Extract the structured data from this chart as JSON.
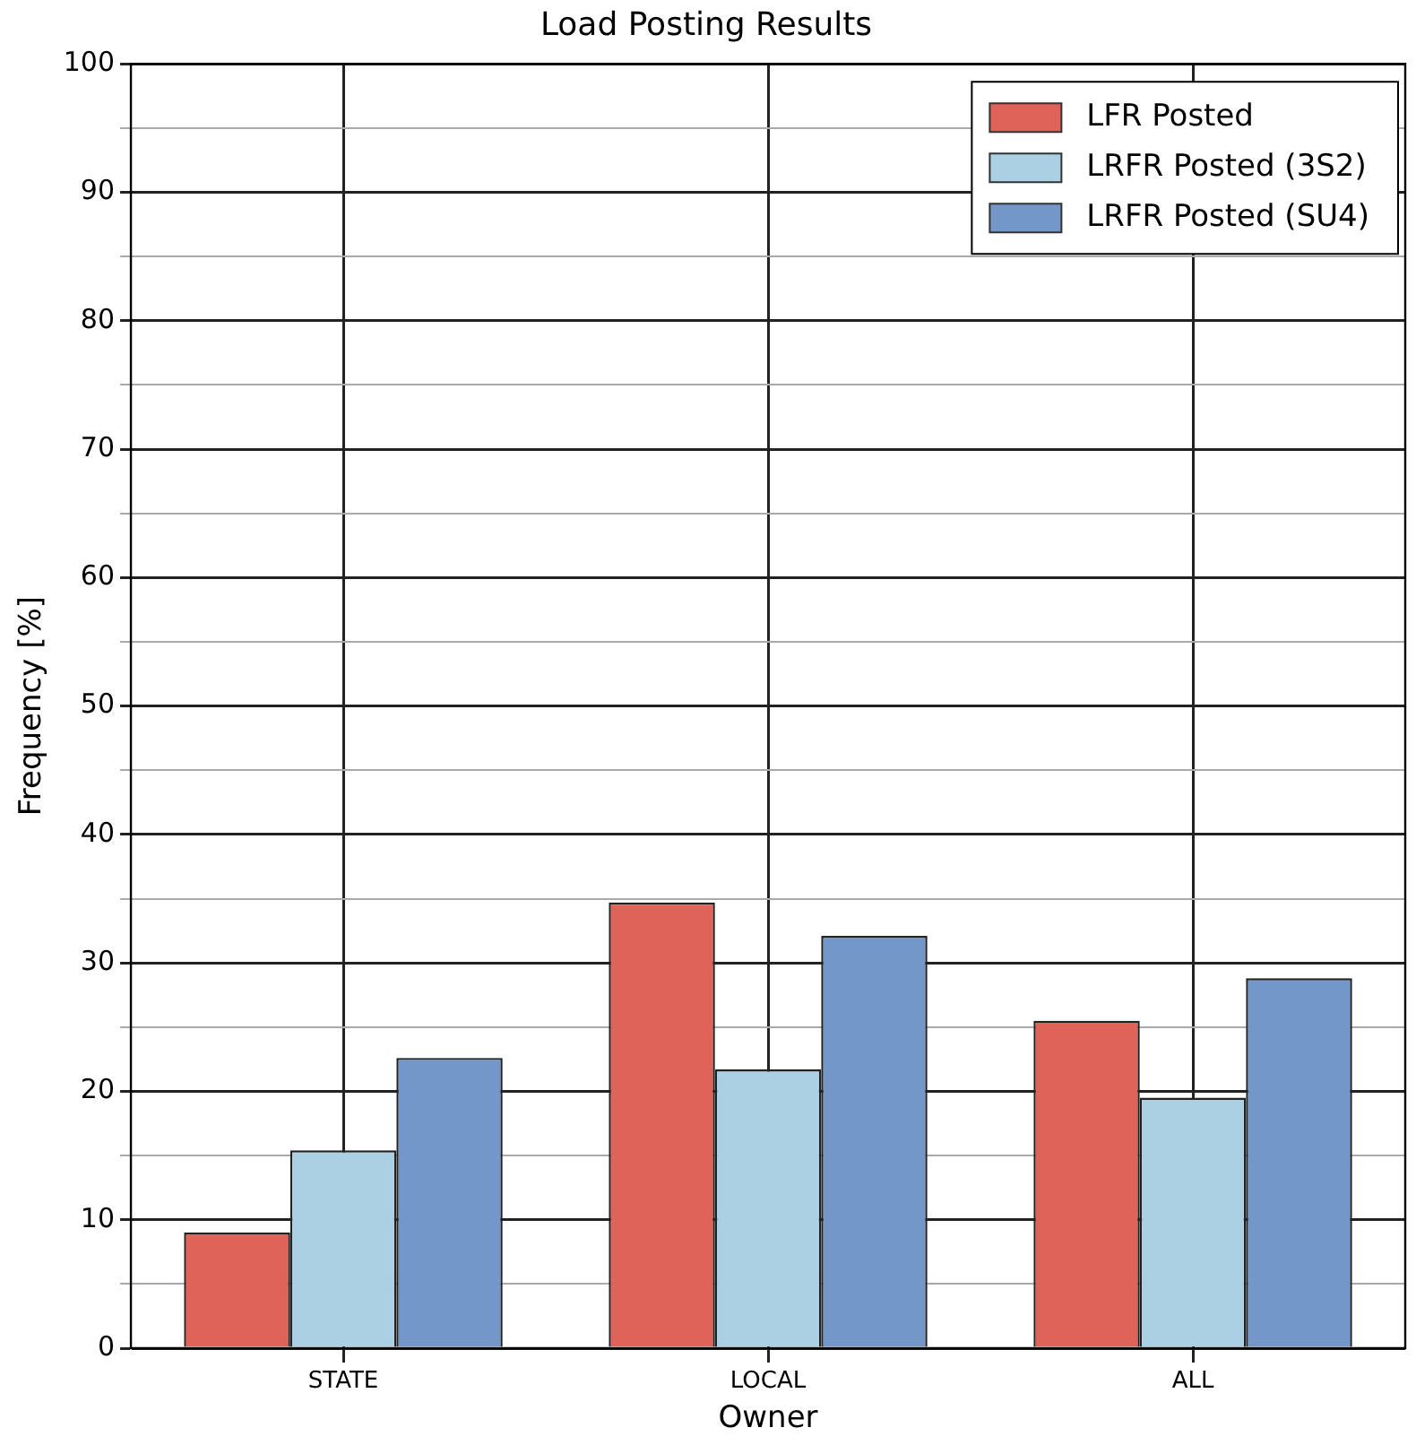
{
  "chart_data": {
    "type": "bar",
    "title": "Load Posting Results",
    "xlabel": "Owner",
    "ylabel": "Frequency [%]",
    "categories": [
      "STATE",
      "LOCAL",
      "ALL"
    ],
    "series": [
      {
        "name": "LFR Posted",
        "color": "#e0635a",
        "values": [
          9.0,
          34.7,
          25.5
        ]
      },
      {
        "name": "LRFR Posted (3S2)",
        "color": "#abcfe3",
        "values": [
          15.4,
          21.7,
          19.5
        ]
      },
      {
        "name": "LRFR Posted (SU4)",
        "color": "#7397c8",
        "values": [
          22.6,
          32.1,
          28.8
        ]
      }
    ],
    "ylim": [
      0,
      100
    ],
    "yticks": [
      0,
      {
        "value": 5,
        "label": null
      },
      10,
      {
        "value": 15,
        "label": null
      },
      20,
      {
        "value": 25,
        "label": null
      },
      30,
      {
        "value": 35,
        "label": null
      },
      40,
      {
        "value": 45,
        "label": null
      },
      50,
      {
        "value": 55,
        "label": null
      },
      60,
      {
        "value": 65,
        "label": null
      },
      70,
      {
        "value": 75,
        "label": null
      },
      80,
      {
        "value": 85,
        "label": null
      },
      90,
      {
        "value": 95,
        "label": null
      },
      100
    ],
    "grid": true,
    "legend": "top right"
  }
}
